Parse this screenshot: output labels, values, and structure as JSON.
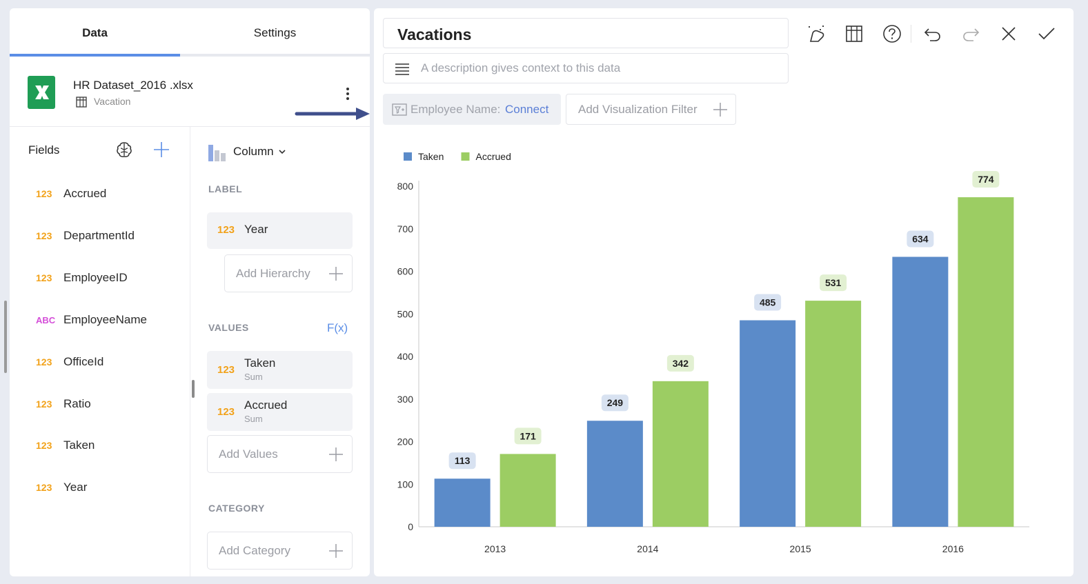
{
  "tabs": {
    "data": "Data",
    "settings": "Settings"
  },
  "source": {
    "file_name": "HR Dataset_2016 .xlsx",
    "sheet": "Vacation"
  },
  "fields": {
    "title": "Fields",
    "items": [
      {
        "type": "123",
        "name": "Accrued"
      },
      {
        "type": "123",
        "name": "DepartmentId"
      },
      {
        "type": "123",
        "name": "EmployeeID"
      },
      {
        "type": "ABC",
        "name": "EmployeeName"
      },
      {
        "type": "123",
        "name": "OfficeId"
      },
      {
        "type": "123",
        "name": "Ratio"
      },
      {
        "type": "123",
        "name": "Taken"
      },
      {
        "type": "123",
        "name": "Year"
      }
    ]
  },
  "config": {
    "viz_type": "Column",
    "label_section": "LABEL",
    "label_field": {
      "type": "123",
      "name": "Year"
    },
    "add_hierarchy": "Add Hierarchy",
    "values_section": "VALUES",
    "fx": "F(x)",
    "values": [
      {
        "type": "123",
        "name": "Taken",
        "agg": "Sum"
      },
      {
        "type": "123",
        "name": "Accrued",
        "agg": "Sum"
      }
    ],
    "add_values": "Add Values",
    "category_section": "CATEGORY",
    "add_category": "Add Category"
  },
  "header": {
    "title": "Vacations",
    "description_placeholder": "A description gives context to this data"
  },
  "filters": {
    "chip_label": "Employee Name:",
    "chip_link": "Connect",
    "add_filter": "Add Visualization Filter"
  },
  "colors": {
    "taken": "#5b8bc9",
    "accrued": "#9ccd63",
    "accent": "#5b8ee6",
    "number_type": "#f2a21a",
    "text_type": "#d44dd8"
  },
  "chart_data": {
    "type": "bar",
    "categories": [
      "2013",
      "2014",
      "2015",
      "2016"
    ],
    "series": [
      {
        "name": "Taken",
        "values": [
          113,
          249,
          485,
          634
        ]
      },
      {
        "name": "Accrued",
        "values": [
          171,
          342,
          531,
          774
        ]
      }
    ],
    "ylim": [
      0,
      800
    ],
    "yticks": [
      "0",
      "100",
      "200",
      "300",
      "400",
      "500",
      "600",
      "700",
      "800"
    ],
    "legend": "top-left",
    "grid": false
  }
}
